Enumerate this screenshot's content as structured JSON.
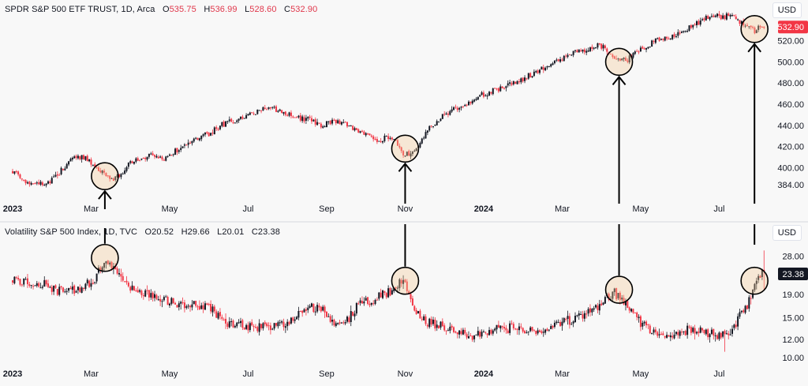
{
  "top": {
    "title": "SPDR S&P 500 ETF TRUST, 1D, Arca",
    "ohlc": [
      {
        "k": "O",
        "v": "535.75"
      },
      {
        "k": "H",
        "v": "536.99"
      },
      {
        "k": "L",
        "v": "528.60"
      },
      {
        "k": "C",
        "v": "532.90"
      }
    ],
    "currency": "USD",
    "last_price": "532.90",
    "last_color": "#f23645"
  },
  "bottom": {
    "title": "Volatility S&P 500 Index, 1D, TVC",
    "ohlc": [
      {
        "k": "O",
        "v": "20.52"
      },
      {
        "k": "H",
        "v": "29.66"
      },
      {
        "k": "L",
        "v": "20.01"
      },
      {
        "k": "C",
        "v": "23.38"
      }
    ],
    "currency": "USD",
    "last_price": "23.38",
    "last_color": "#131722"
  },
  "chart_data": [
    {
      "type": "candlestick",
      "title": "SPDR S&P 500 ETF TRUST, 1D, Arca",
      "y_ticks": [
        384,
        400,
        420,
        440,
        460,
        480,
        500,
        520
      ],
      "ylim": [
        372,
        545
      ],
      "x_ticks": [
        {
          "label": "2023",
          "bold": true
        },
        {
          "label": "Mar"
        },
        {
          "label": "May"
        },
        {
          "label": "Jul"
        },
        {
          "label": "Sep"
        },
        {
          "label": "Nov"
        },
        {
          "label": "2024",
          "bold": true
        },
        {
          "label": "Mar"
        },
        {
          "label": "May"
        },
        {
          "label": "Jul"
        }
      ],
      "x_months": [
        0,
        2,
        4,
        6,
        8,
        10,
        12,
        14,
        16,
        18
      ],
      "path": [
        [
          0,
          396
        ],
        [
          0.3,
          388
        ],
        [
          0.6,
          384
        ],
        [
          0.9,
          386
        ],
        [
          1.1,
          392
        ],
        [
          1.4,
          404
        ],
        [
          1.6,
          412
        ],
        [
          1.9,
          408
        ],
        [
          2.1,
          400
        ],
        [
          2.35,
          393
        ],
        [
          2.55,
          388
        ],
        [
          2.75,
          394
        ],
        [
          3.0,
          405
        ],
        [
          3.3,
          410
        ],
        [
          3.6,
          412
        ],
        [
          3.9,
          408
        ],
        [
          4.1,
          415
        ],
        [
          4.4,
          420
        ],
        [
          4.7,
          428
        ],
        [
          5.0,
          432
        ],
        [
          5.3,
          440
        ],
        [
          5.6,
          444
        ],
        [
          6.0,
          450
        ],
        [
          6.3,
          454
        ],
        [
          6.6,
          456
        ],
        [
          6.9,
          452
        ],
        [
          7.2,
          448
        ],
        [
          7.6,
          445
        ],
        [
          7.9,
          440
        ],
        [
          8.2,
          445
        ],
        [
          8.5,
          441
        ],
        [
          8.8,
          436
        ],
        [
          9.1,
          428
        ],
        [
          9.35,
          426
        ],
        [
          9.6,
          430
        ],
        [
          9.75,
          424
        ],
        [
          9.95,
          414
        ],
        [
          10.1,
          413
        ],
        [
          10.3,
          420
        ],
        [
          10.5,
          432
        ],
        [
          10.7,
          440
        ],
        [
          11.0,
          450
        ],
        [
          11.3,
          456
        ],
        [
          11.6,
          460
        ],
        [
          11.9,
          468
        ],
        [
          12.2,
          472
        ],
        [
          12.5,
          476
        ],
        [
          12.8,
          480
        ],
        [
          13.2,
          488
        ],
        [
          13.5,
          494
        ],
        [
          13.8,
          500
        ],
        [
          14.1,
          505
        ],
        [
          14.4,
          510
        ],
        [
          14.7,
          512
        ],
        [
          14.9,
          515
        ],
        [
          15.1,
          513
        ],
        [
          15.25,
          508
        ],
        [
          15.45,
          501
        ],
        [
          15.65,
          502
        ],
        [
          15.85,
          508
        ],
        [
          16.1,
          514
        ],
        [
          16.4,
          520
        ],
        [
          16.7,
          523
        ],
        [
          17.0,
          528
        ],
        [
          17.3,
          534
        ],
        [
          17.6,
          540
        ],
        [
          17.9,
          545
        ],
        [
          18.1,
          542
        ],
        [
          18.3,
          546
        ],
        [
          18.5,
          538
        ],
        [
          18.7,
          536
        ],
        [
          18.8,
          532
        ],
        [
          18.9,
          528
        ],
        [
          19.0,
          533
        ]
      ],
      "bars_per_month": 21,
      "seed": 7,
      "circles": [
        {
          "x": 2.35,
          "y": 392
        },
        {
          "x": 10.0,
          "y": 418
        },
        {
          "x": 15.45,
          "y": 500
        },
        {
          "x": 18.9,
          "y": 531
        }
      ],
      "arrows": [
        {
          "x": 2.35,
          "dir": "up"
        },
        {
          "x": 10.0,
          "dir": "up"
        },
        {
          "x": 15.45,
          "dir": "up"
        },
        {
          "x": 18.9,
          "dir": "down"
        }
      ]
    },
    {
      "type": "candlestick",
      "title": "Volatility S&P 500 Index, 1D, TVC",
      "y_ticks": [
        10.0,
        12.0,
        15.0,
        19.0,
        28.0
      ],
      "y_scale": "log",
      "ylim": [
        9.6,
        33
      ],
      "x_ticks": [
        {
          "label": "2023",
          "bold": true
        },
        {
          "label": "Mar"
        },
        {
          "label": "May"
        },
        {
          "label": "Jul"
        },
        {
          "label": "Sep"
        },
        {
          "label": "Nov"
        },
        {
          "label": "2024",
          "bold": true
        },
        {
          "label": "Mar"
        },
        {
          "label": "May"
        },
        {
          "label": "Jul"
        }
      ],
      "x_months": [
        0,
        2,
        4,
        6,
        8,
        10,
        12,
        14,
        16,
        18
      ],
      "path": [
        [
          0,
          22
        ],
        [
          0.4,
          21.5
        ],
        [
          0.8,
          21
        ],
        [
          1.0,
          20
        ],
        [
          1.3,
          19.5
        ],
        [
          1.6,
          20
        ],
        [
          1.9,
          21
        ],
        [
          2.1,
          21.5
        ],
        [
          2.2,
          24
        ],
        [
          2.35,
          26
        ],
        [
          2.6,
          24
        ],
        [
          2.85,
          21.5
        ],
        [
          3.2,
          19.5
        ],
        [
          3.6,
          18.5
        ],
        [
          4.0,
          17.5
        ],
        [
          4.4,
          17
        ],
        [
          4.8,
          17
        ],
        [
          5.1,
          16
        ],
        [
          5.4,
          14
        ],
        [
          5.8,
          13.8
        ],
        [
          6.1,
          13.5
        ],
        [
          6.4,
          13.8
        ],
        [
          6.8,
          13.8
        ],
        [
          7.1,
          14.5
        ],
        [
          7.5,
          16.5
        ],
        [
          7.8,
          16.8
        ],
        [
          8.1,
          14.6
        ],
        [
          8.5,
          14.4
        ],
        [
          8.8,
          17
        ],
        [
          9.2,
          18
        ],
        [
          9.6,
          19.5
        ],
        [
          9.9,
          21.5
        ],
        [
          10.05,
          20
        ],
        [
          10.2,
          17
        ],
        [
          10.5,
          14.5
        ],
        [
          10.8,
          14
        ],
        [
          11.2,
          13
        ],
        [
          11.5,
          12.6
        ],
        [
          11.9,
          12.5
        ],
        [
          12.3,
          13.3
        ],
        [
          12.7,
          13.5
        ],
        [
          13.0,
          13.2
        ],
        [
          13.4,
          13.0
        ],
        [
          13.8,
          14
        ],
        [
          14.1,
          14.5
        ],
        [
          14.4,
          15
        ],
        [
          14.7,
          15.8
        ],
        [
          14.9,
          17
        ],
        [
          15.1,
          17.8
        ],
        [
          15.3,
          19.5
        ],
        [
          15.5,
          18
        ],
        [
          15.7,
          16.5
        ],
        [
          16.0,
          14
        ],
        [
          16.3,
          13
        ],
        [
          16.6,
          12.5
        ],
        [
          16.9,
          12.9
        ],
        [
          17.2,
          13.2
        ],
        [
          17.5,
          13.3
        ],
        [
          17.8,
          12.7
        ],
        [
          18.1,
          12.5
        ],
        [
          18.3,
          13
        ],
        [
          18.5,
          15
        ],
        [
          18.7,
          17
        ],
        [
          18.85,
          19
        ],
        [
          19.0,
          23.4
        ]
      ],
      "bars_per_month": 21,
      "seed": 11,
      "circles": [
        {
          "x": 2.35,
          "y": 27.5
        },
        {
          "x": 10.0,
          "y": 21.8
        },
        {
          "x": 15.45,
          "y": 19.9
        },
        {
          "x": 18.9,
          "y": 21.8
        }
      ]
    }
  ]
}
